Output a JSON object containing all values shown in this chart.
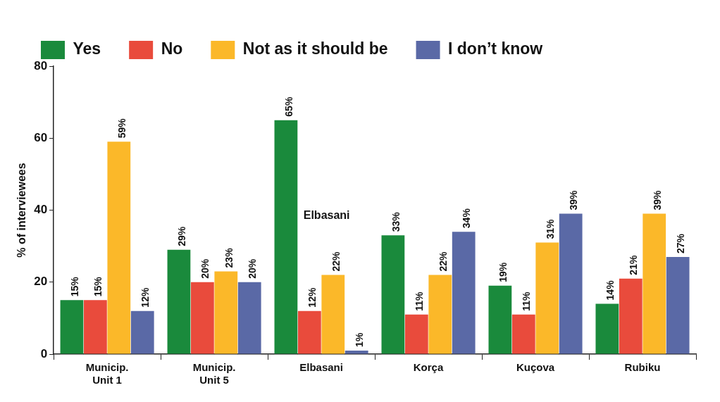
{
  "chart_data": {
    "type": "bar",
    "ylabel": "% of interviewees",
    "categories": [
      "Municip. Unit 1",
      "Municip. Unit 5",
      "Elbasani",
      "Korça",
      "Kuçova",
      "Rubiku"
    ],
    "series": [
      {
        "name": "Yes",
        "color": "#1a8a3c",
        "values": [
          15,
          29,
          65,
          33,
          19,
          14
        ],
        "value_labels": [
          "15%",
          "29%",
          "65%",
          "33%",
          "19%",
          "14%"
        ]
      },
      {
        "name": "No",
        "color": "#e94b3c",
        "values": [
          15,
          20,
          12,
          11,
          11,
          21
        ],
        "value_labels": [
          "15%",
          "20%",
          "12%",
          "11%",
          "11%",
          "21%"
        ]
      },
      {
        "name": "Not as it should be",
        "color": "#fbb829",
        "values": [
          59,
          23,
          22,
          22,
          31,
          39
        ],
        "value_labels": [
          "59%",
          "23%",
          "22%",
          "22%",
          "31%",
          "39%"
        ]
      },
      {
        "name": "I don’t know",
        "color": "#5a69a6",
        "values": [
          12,
          20,
          1,
          34,
          39,
          27
        ],
        "value_labels": [
          "12%",
          "20%",
          "1%",
          "34%",
          "39%",
          "27%"
        ]
      }
    ],
    "ylim": [
      0,
      80
    ],
    "yticks": [
      0,
      20,
      40,
      60,
      80
    ],
    "grid": false,
    "legend": "top",
    "annotations": [
      "Elbasani"
    ]
  }
}
